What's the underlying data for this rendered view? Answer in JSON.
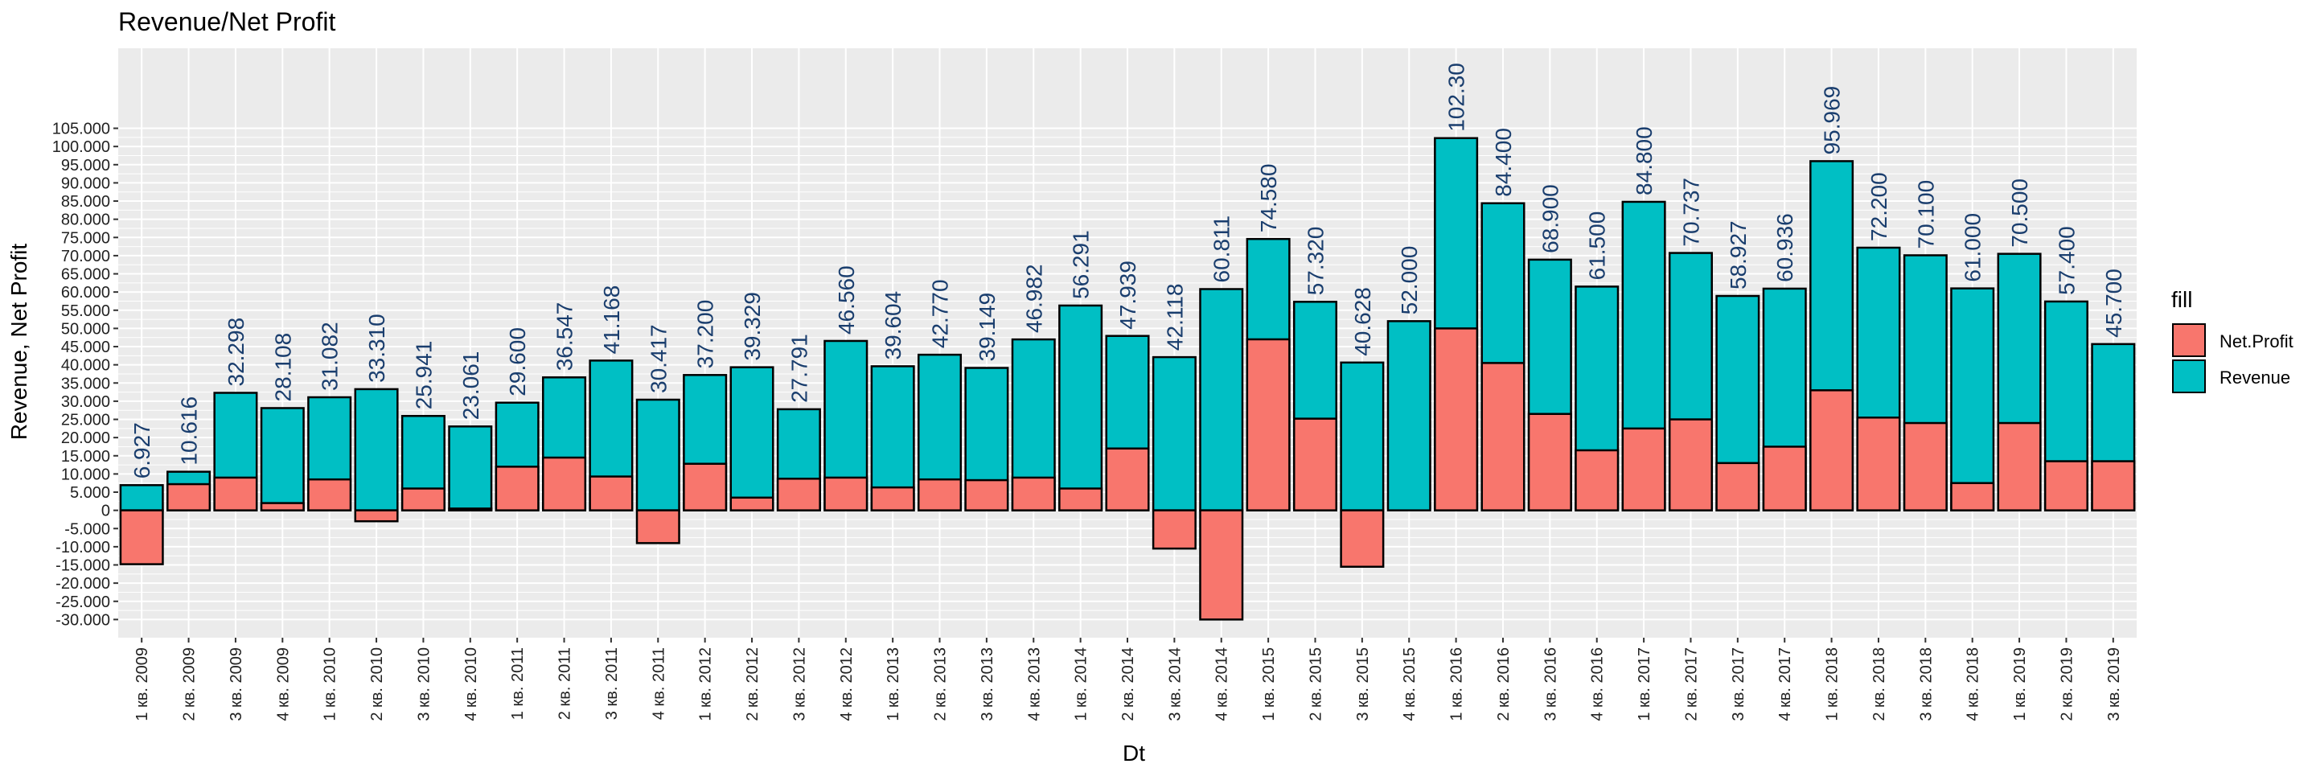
{
  "chart_data": {
    "type": "bar",
    "title": "Revenue/Net Profit",
    "xlabel": "Dt",
    "ylabel": "Revenue, Net Profit",
    "ylim": [
      -35000,
      127000
    ],
    "yticks": [
      -30000,
      -25000,
      -20000,
      -15000,
      -10000,
      -5000,
      0,
      5000,
      10000,
      15000,
      20000,
      25000,
      30000,
      35000,
      40000,
      45000,
      50000,
      55000,
      60000,
      65000,
      70000,
      75000,
      80000,
      85000,
      90000,
      95000,
      100000,
      105000
    ],
    "ytick_labels": [
      "-30.000",
      "-25.000",
      "-20.000",
      "-15.000",
      "-10.000",
      "-5.000",
      "0",
      "5.000",
      "10.000",
      "15.000",
      "20.000",
      "25.000",
      "30.000",
      "35.000",
      "40.000",
      "45.000",
      "50.000",
      "55.000",
      "60.000",
      "65.000",
      "70.000",
      "75.000",
      "80.000",
      "85.000",
      "90.000",
      "95.000",
      "100.000",
      "105.000"
    ],
    "grid": true,
    "legend": {
      "title": "fill",
      "position": "right"
    },
    "colors": {
      "Net.Profit": "#f8766d",
      "Revenue": "#00bfc4",
      "panel": "#ebebeb",
      "grid": "#ffffff",
      "label": "#1a3e6e"
    },
    "categories": [
      "1 кв. 2009",
      "2 кв. 2009",
      "3 кв. 2009",
      "4 кв. 2009",
      "1 кв. 2010",
      "2 кв. 2010",
      "3 кв. 2010",
      "4 кв. 2010",
      "1 кв. 2011",
      "2 кв. 2011",
      "3 кв. 2011",
      "4 кв. 2011",
      "1 кв. 2012",
      "2 кв. 2012",
      "3 кв. 2012",
      "4 кв. 2012",
      "1 кв. 2013",
      "2 кв. 2013",
      "3 кв. 2013",
      "4 кв. 2013",
      "1 кв. 2014",
      "2 кв. 2014",
      "3 кв. 2014",
      "4 кв. 2014",
      "1 кв. 2015",
      "2 кв. 2015",
      "3 кв. 2015",
      "4 кв. 2015",
      "1 кв. 2016",
      "2 кв. 2016",
      "3 кв. 2016",
      "4 кв. 2016",
      "1 кв. 2017",
      "2 кв. 2017",
      "3 кв. 2017",
      "4 кв. 2017",
      "1 кв. 2018",
      "2 кв. 2018",
      "3 кв. 2018",
      "4 кв. 2018",
      "1 кв. 2019",
      "2 кв. 2019",
      "3 кв. 2019"
    ],
    "series": [
      {
        "name": "Revenue",
        "values": [
          6927,
          10616,
          32298,
          28108,
          31082,
          33310,
          25941,
          23061,
          29600,
          36547,
          41168,
          30417,
          37200,
          39329,
          27791,
          46560,
          39604,
          42770,
          39149,
          46982,
          56291,
          47939,
          42118,
          60811,
          74580,
          57320,
          40628,
          52000,
          102300,
          84400,
          68900,
          61500,
          84800,
          70737,
          58927,
          60936,
          95969,
          72200,
          70100,
          61000,
          70500,
          57400,
          45700
        ]
      },
      {
        "name": "Net.Profit",
        "values": [
          -14800,
          7200,
          9000,
          2000,
          8500,
          -3000,
          6000,
          500,
          12000,
          14500,
          9300,
          -9000,
          12800,
          3500,
          8700,
          9000,
          6300,
          8500,
          8300,
          9000,
          6000,
          17000,
          -10500,
          -30000,
          47000,
          25200,
          -15500,
          0,
          50000,
          40500,
          26500,
          16500,
          22500,
          25000,
          13000,
          17500,
          33000,
          25500,
          24000,
          7500,
          24000,
          13500,
          13500
        ]
      }
    ],
    "value_labels": [
      "6.927",
      "10.616",
      "32.298",
      "28.108",
      "31.082",
      "33.310",
      "25.941",
      "23.061",
      "29.600",
      "36.547",
      "41.168",
      "30.417",
      "37.200",
      "39.329",
      "27.791",
      "46.560",
      "39.604",
      "42.770",
      "39.149",
      "46.982",
      "56.291",
      "47.939",
      "42.118",
      "60.811",
      "74.580",
      "57.320",
      "40.628",
      "52.000",
      "102.30",
      "84.400",
      "68.900",
      "61.500",
      "84.800",
      "70.737",
      "58.927",
      "60.936",
      "95.969",
      "72.200",
      "70.100",
      "61.000",
      "70.500",
      "57.400",
      "45.700"
    ]
  }
}
